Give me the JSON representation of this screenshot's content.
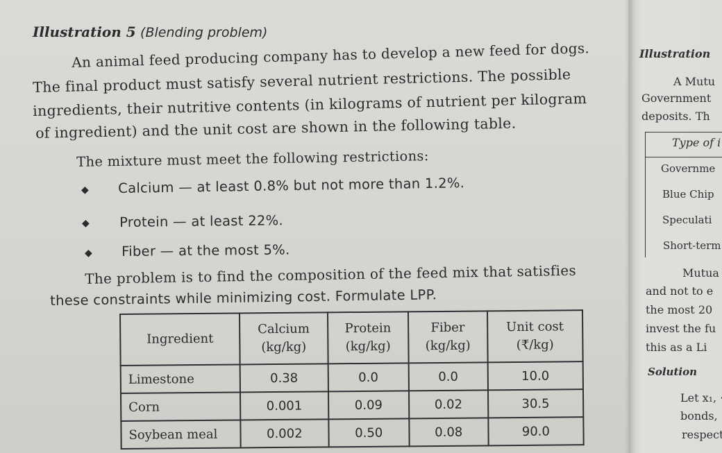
{
  "heading": {
    "title": "Illustration 5",
    "subtitle": "(Blending problem)"
  },
  "intro_lines": [
    "An animal feed producing company has to develop a new feed for dogs.",
    "The final product must satisfy several nutrient restrictions. The possible",
    "ingredients, their nutritive contents (in kilograms of nutrient per kilogram",
    "of ingredient) and the unit cost are shown in the following table."
  ],
  "restrictions_intro": "The mixture must meet the following restrictions:",
  "restrictions": [
    {
      "bullet": "◆",
      "text": "Calcium — at least 0.8% but not more than 1.2%."
    },
    {
      "bullet": "◆",
      "text": "Protein — at least 22%."
    },
    {
      "bullet": "◆",
      "text": "Fiber — at the most 5%."
    }
  ],
  "problem_lines": [
    "The problem is to find the composition of the feed mix that satisfies",
    "these constraints while minimizing cost. Formulate LPP."
  ],
  "table": {
    "headers": [
      [
        "Ingredient",
        ""
      ],
      [
        "Calcium",
        "(kg/kg)"
      ],
      [
        "Protein",
        "(kg/kg)"
      ],
      [
        "Fiber",
        "(kg/kg)"
      ],
      [
        "Unit cost",
        "(₹/kg)"
      ]
    ],
    "rows": [
      [
        "Limestone",
        "0.38",
        "0.0",
        "0.0",
        "10.0"
      ],
      [
        "Corn",
        "0.001",
        "0.09",
        "0.02",
        "30.5"
      ],
      [
        "Soybean meal",
        "0.002",
        "0.50",
        "0.08",
        "90.0"
      ]
    ]
  },
  "right_page": {
    "heading": "Illustration",
    "lines": [
      "A Mutu",
      "Government",
      "deposits. Th"
    ],
    "box_header": "Type of i",
    "box_rows": [
      "Governme",
      "Blue Chip",
      "Speculati",
      "Short-term"
    ],
    "after_lines": [
      "Mutua",
      "and not to e",
      "the most 20",
      "invest the fu",
      "this as a Li"
    ],
    "solution": "Solution",
    "solution_lines": [
      "Let x₁, ·",
      "bonds,",
      "respect"
    ]
  }
}
